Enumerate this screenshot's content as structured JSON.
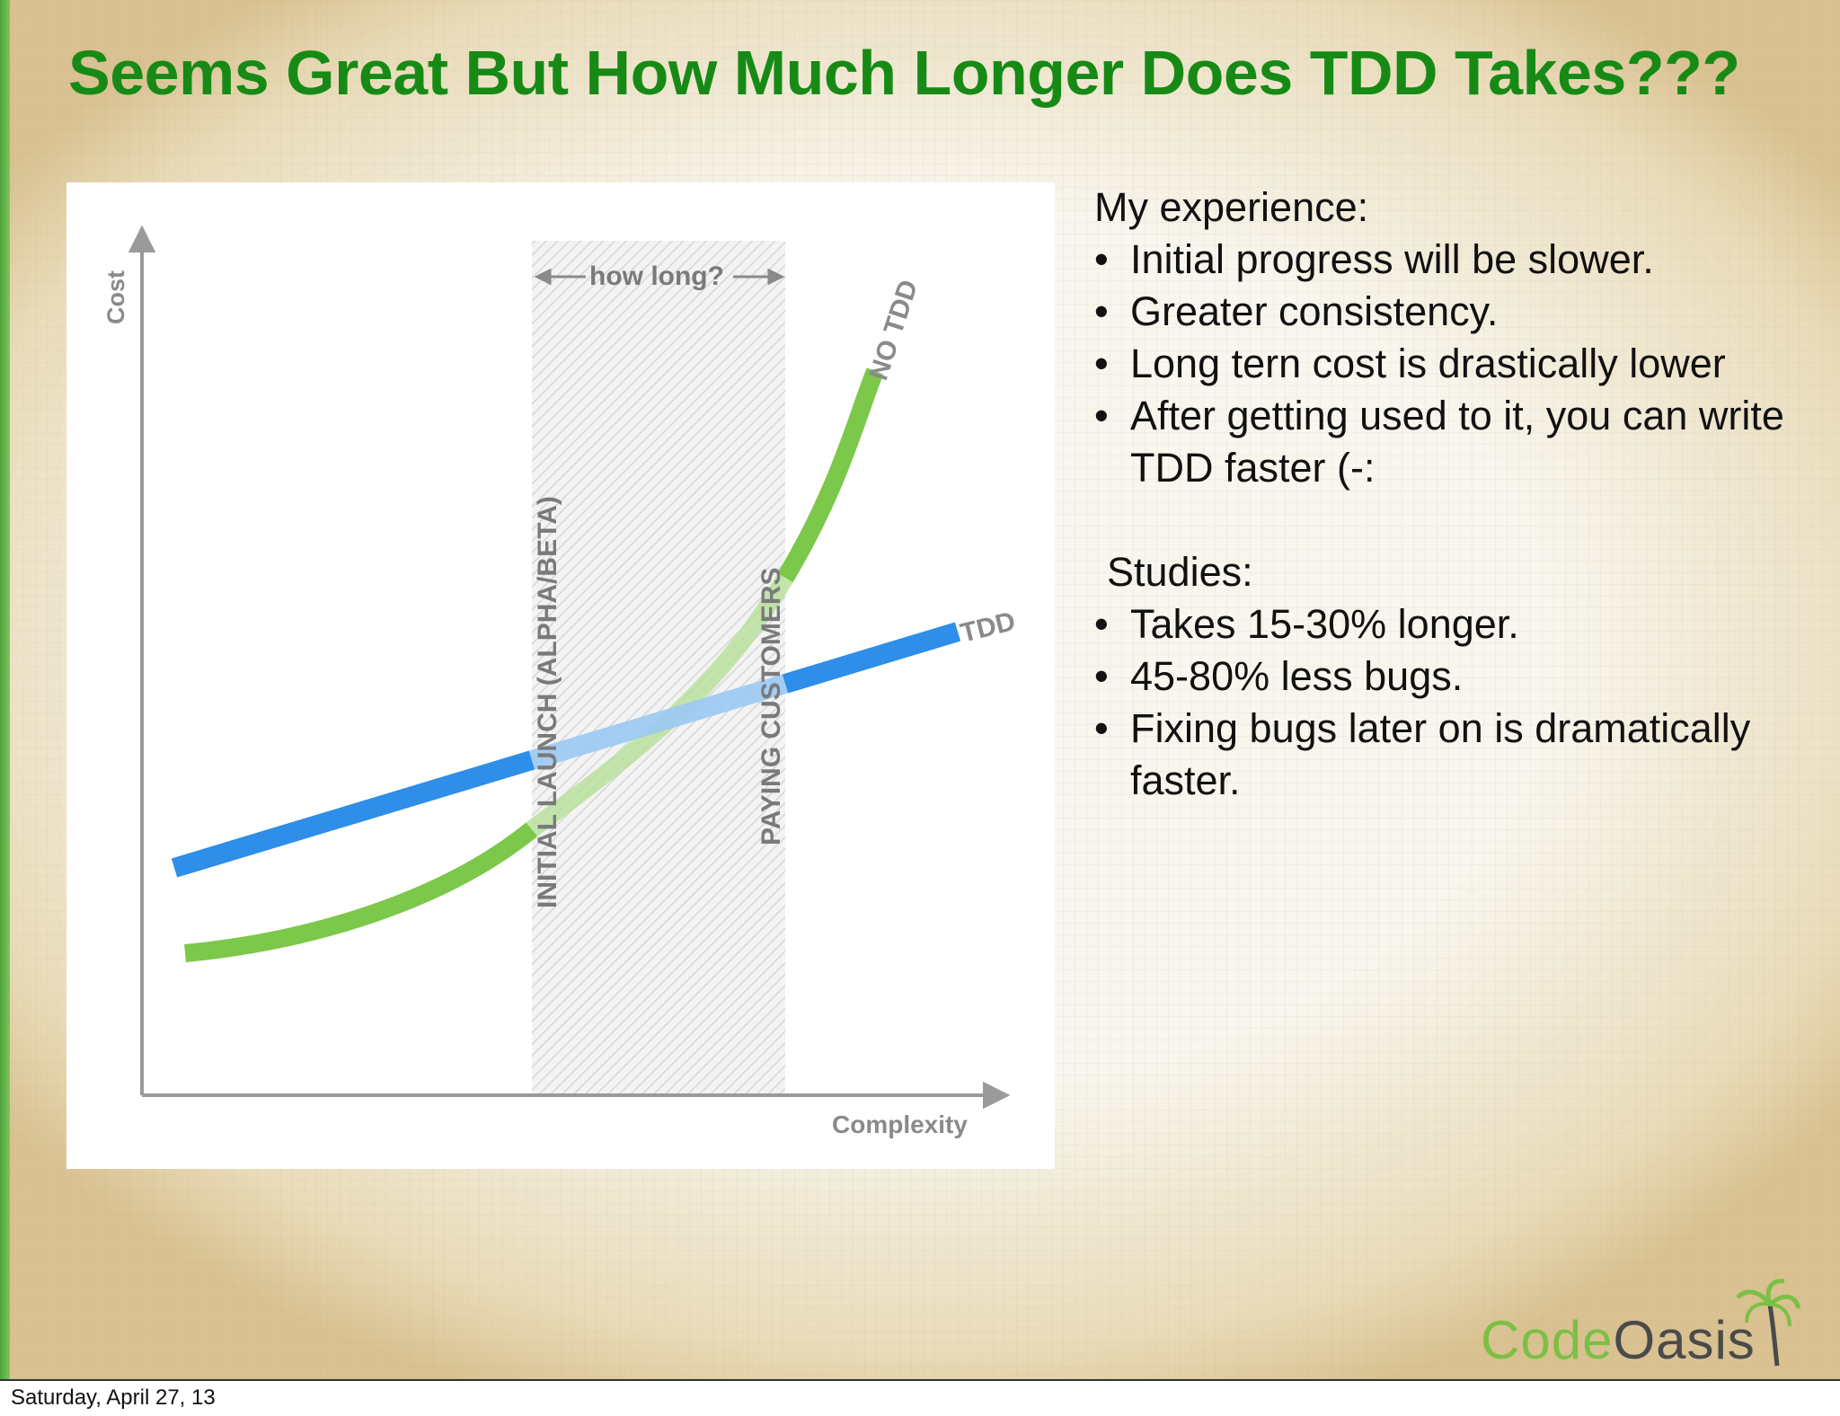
{
  "title": "Seems Great But How Much Longer Does TDD Takes???",
  "chart": {
    "y_axis_label": "Cost",
    "x_axis_label": "Complexity",
    "band_header": "how long?",
    "band_left_label": "INITIAL LAUNCH (ALPHA/BETA)",
    "band_right_label": "PAYING CUSTOMERS",
    "series_tdd_label": "TDD",
    "series_no_tdd_label": "NO TDD",
    "colors": {
      "tdd": "#2e8ee8",
      "no_tdd": "#7cc84a",
      "axis": "#9a9a9a"
    }
  },
  "notes": {
    "experience_heading": "My experience:",
    "experience_items": [
      "Initial progress will be slower.",
      "Greater consistency.",
      "Long tern cost is drastically lower",
      "After getting used to it, you can write TDD faster (-:"
    ],
    "studies_heading": "Studies:",
    "studies_items": [
      "Takes 15-30% longer.",
      "45-80% less bugs.",
      "Fixing bugs later on is dramatically faster."
    ],
    "bullet_char": "•"
  },
  "logo": {
    "part1": "Code",
    "part2": "Oasis"
  },
  "footer": {
    "date": "Saturday, April 27, 13"
  },
  "theme": {
    "title_color": "#178a16",
    "accent_bar": "#5cae3f"
  }
}
